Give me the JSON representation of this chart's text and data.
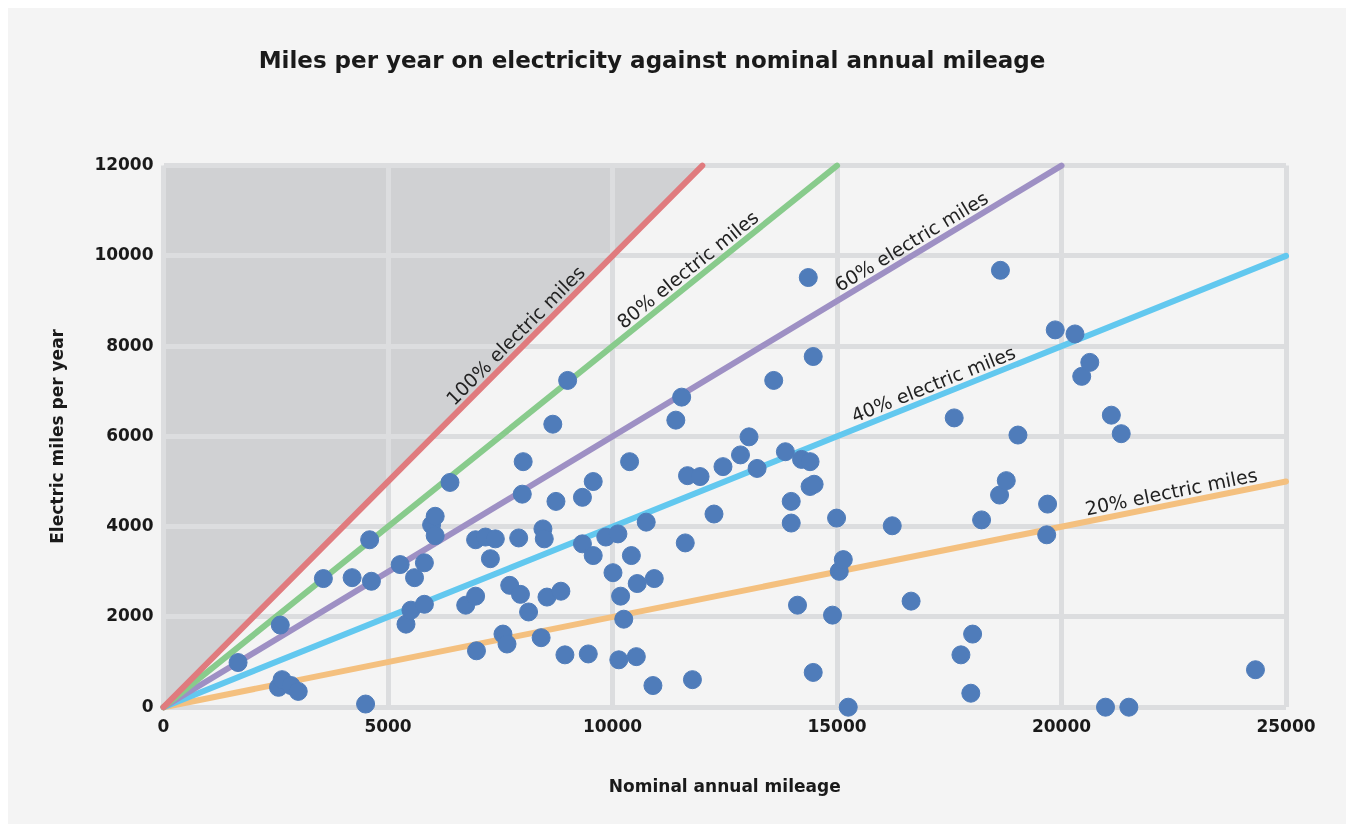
{
  "chart_data": {
    "type": "scatter",
    "title": "Miles per year on electricity against nominal annual mileage",
    "xlabel": "Nominal annual mileage",
    "ylabel": "Electric miles per year",
    "xlim": [
      0,
      25000
    ],
    "xticks": [
      0,
      5000,
      10000,
      15000,
      20000,
      25000
    ],
    "ylim": [
      0,
      12000
    ],
    "yticks": [
      0,
      2000,
      4000,
      6000,
      8000,
      10000,
      12000
    ],
    "grid": true,
    "legend": false,
    "marker": "circle",
    "series": [
      {
        "type": "line",
        "marker": "none",
        "name": "100% electric miles",
        "color": "#e07b7e",
        "x": [
          0,
          12000
        ],
        "values": [
          0,
          12000
        ]
      },
      {
        "type": "line",
        "marker": "none",
        "name": "80% electric miles",
        "color": "#88cb8c",
        "x": [
          0,
          15000
        ],
        "values": [
          0,
          12000
        ]
      },
      {
        "type": "line",
        "marker": "none",
        "name": "60% electric miles",
        "color": "#9e90c4",
        "x": [
          0,
          20000
        ],
        "values": [
          0,
          12000
        ]
      },
      {
        "type": "line",
        "marker": "none",
        "name": "40% electric miles",
        "color": "#62c8ef",
        "x": [
          0,
          25000
        ],
        "values": [
          0,
          10000
        ]
      },
      {
        "type": "line",
        "marker": "none",
        "name": "20% electric miles",
        "color": "#f4c07f",
        "x": [
          0,
          25000
        ],
        "values": [
          0,
          5000
        ]
      },
      {
        "color": "#4f7cba",
        "x": [
          1660,
          2600,
          2560,
          2640,
          2840,
          3000,
          3560,
          4200,
          4590,
          4630,
          4500,
          5270,
          5400,
          5510,
          5590,
          5810,
          5810,
          5970,
          6050,
          6050,
          6380,
          6730,
          6950,
          6950,
          6970,
          7170,
          7280,
          7390,
          7560,
          7650,
          7710,
          7910,
          7950,
          7990,
          8010,
          8130,
          8410,
          8450,
          8480,
          8540,
          8670,
          8740,
          8850,
          8940,
          9000,
          9330,
          9330,
          9460,
          9570,
          9570,
          9850,
          10010,
          10120,
          10140,
          10180,
          10250,
          10380,
          10420,
          10530,
          10550,
          10750,
          10900,
          10930,
          11410,
          11540,
          11620,
          11670,
          11780,
          11950,
          12260,
          12460,
          12850,
          13040,
          13220,
          13590,
          13850,
          13980,
          13980,
          14120,
          14210,
          14360,
          14400,
          14400,
          14470,
          14490,
          14470,
          14900,
          14990,
          15050,
          15140,
          15250,
          16230,
          16650,
          17610,
          17760,
          17980,
          18020,
          18220,
          18620,
          18640,
          18770,
          19030,
          19670,
          19690,
          19860,
          20300,
          20450,
          20630,
          21110,
          21330,
          20980,
          21500,
          24320
        ],
        "values": [
          990,
          1820,
          440,
          610,
          480,
          350,
          2850,
          2870,
          3710,
          2790,
          70,
          3160,
          1840,
          2150,
          2870,
          3200,
          2280,
          4040,
          4230,
          3800,
          4980,
          2260,
          3710,
          2460,
          1250,
          3770,
          3290,
          3730,
          1620,
          1400,
          2700,
          3750,
          2500,
          4720,
          5440,
          2110,
          1540,
          3950,
          3730,
          2440,
          6270,
          4560,
          2570,
          1160,
          7240,
          4650,
          3620,
          1180,
          3360,
          5000,
          3770,
          2980,
          3840,
          1050,
          2460,
          1950,
          5440,
          3360,
          1120,
          2740,
          4100,
          480,
          2850,
          6360,
          6870,
          3640,
          5130,
          610,
          5110,
          4280,
          5330,
          5590,
          5990,
          5290,
          7240,
          5660,
          4560,
          4080,
          2260,
          5490,
          9520,
          5440,
          4890,
          7770,
          4940,
          770,
          2040,
          4190,
          3010,
          3270,
          0,
          4020,
          2350,
          6410,
          1160,
          310,
          1620,
          4150,
          4700,
          9680,
          5020,
          6030,
          3820,
          4500,
          8360,
          8270,
          7330,
          7640,
          6470,
          6060,
          0,
          0,
          830
        ]
      }
    ]
  }
}
